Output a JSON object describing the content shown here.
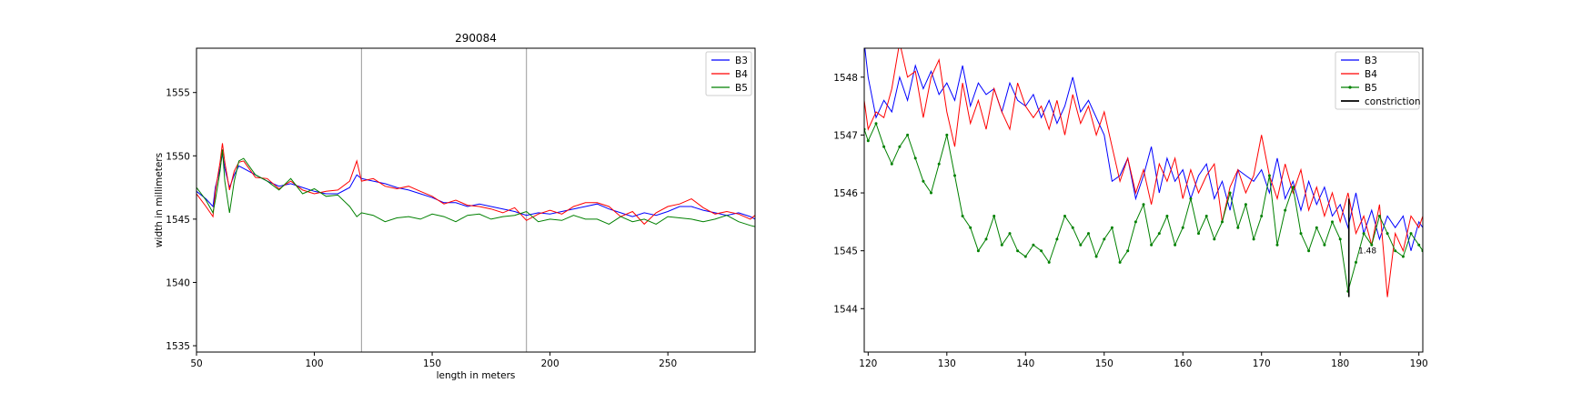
{
  "figure_title": "290084",
  "colors": {
    "B3": "#0000ff",
    "B4": "#ff0000",
    "B5": "#008000",
    "constriction": "#000000",
    "vline": "#999999"
  },
  "chart_data": [
    {
      "type": "line",
      "title": "290084",
      "xlabel": "length in meters",
      "ylabel": "width in millimeters",
      "xlim": [
        50,
        287
      ],
      "ylim": [
        1534.5,
        1558.5
      ],
      "xticks": [
        50,
        100,
        150,
        200,
        250
      ],
      "yticks": [
        1535,
        1540,
        1545,
        1550,
        1555
      ],
      "grid": false,
      "legend_position": "top-right",
      "vlines": [
        120,
        190
      ],
      "series": [
        {
          "name": "B3",
          "color": "#0000ff",
          "x": [
            50,
            54,
            57,
            58,
            60,
            61,
            62,
            64,
            66,
            68,
            70,
            75,
            80,
            85,
            90,
            95,
            100,
            105,
            110,
            115,
            118,
            120,
            125,
            130,
            135,
            140,
            145,
            150,
            155,
            160,
            165,
            170,
            175,
            180,
            185,
            190,
            195,
            200,
            205,
            210,
            215,
            220,
            225,
            230,
            235,
            240,
            245,
            250,
            255,
            260,
            265,
            270,
            275,
            280,
            285,
            287
          ],
          "y": [
            1547.2,
            1546.6,
            1546.0,
            1547.5,
            1549.0,
            1550.2,
            1549.0,
            1547.5,
            1548.5,
            1549.2,
            1549.0,
            1548.5,
            1548.0,
            1547.6,
            1547.8,
            1547.5,
            1547.2,
            1547.0,
            1547.0,
            1547.5,
            1548.5,
            1548.2,
            1548.0,
            1547.8,
            1547.5,
            1547.3,
            1547.0,
            1546.7,
            1546.3,
            1546.3,
            1546.0,
            1546.2,
            1546.0,
            1545.8,
            1545.6,
            1545.3,
            1545.5,
            1545.4,
            1545.6,
            1545.8,
            1546.0,
            1546.2,
            1545.8,
            1545.5,
            1545.2,
            1545.5,
            1545.3,
            1545.6,
            1546.0,
            1546.0,
            1545.7,
            1545.5,
            1545.3,
            1545.5,
            1545.2,
            1545.0
          ]
        },
        {
          "name": "B4",
          "color": "#ff0000",
          "x": [
            50,
            54,
            57,
            58,
            60,
            61,
            62,
            64,
            66,
            68,
            70,
            75,
            80,
            85,
            90,
            95,
            100,
            105,
            110,
            115,
            118,
            120,
            125,
            130,
            135,
            140,
            145,
            150,
            155,
            160,
            165,
            170,
            175,
            180,
            185,
            190,
            195,
            200,
            205,
            210,
            215,
            220,
            225,
            230,
            235,
            240,
            245,
            250,
            255,
            260,
            265,
            270,
            275,
            280,
            285,
            287
          ],
          "y": [
            1547.0,
            1546.0,
            1545.2,
            1547.2,
            1549.5,
            1551.0,
            1549.5,
            1547.3,
            1548.8,
            1549.5,
            1549.6,
            1548.3,
            1548.2,
            1547.4,
            1548.0,
            1547.3,
            1547.0,
            1547.2,
            1547.3,
            1548.0,
            1549.6,
            1548.0,
            1548.2,
            1547.6,
            1547.4,
            1547.6,
            1547.2,
            1546.8,
            1546.2,
            1546.5,
            1546.1,
            1546.0,
            1545.8,
            1545.5,
            1545.9,
            1544.9,
            1545.4,
            1545.7,
            1545.4,
            1546.0,
            1546.3,
            1546.3,
            1546.0,
            1545.2,
            1545.6,
            1544.6,
            1545.5,
            1546.0,
            1546.2,
            1546.6,
            1545.9,
            1545.4,
            1545.6,
            1545.4,
            1545.0,
            1545.3
          ]
        },
        {
          "name": "B5",
          "color": "#008000",
          "x": [
            50,
            54,
            57,
            58,
            60,
            61,
            62,
            64,
            66,
            68,
            70,
            75,
            80,
            85,
            90,
            95,
            100,
            105,
            110,
            115,
            118,
            120,
            125,
            130,
            135,
            140,
            145,
            150,
            155,
            160,
            165,
            170,
            175,
            180,
            185,
            190,
            195,
            200,
            205,
            210,
            215,
            220,
            225,
            230,
            235,
            240,
            245,
            250,
            255,
            260,
            265,
            270,
            275,
            280,
            285,
            287
          ],
          "y": [
            1547.5,
            1546.5,
            1545.5,
            1546.5,
            1548.8,
            1550.5,
            1548.0,
            1545.5,
            1548.0,
            1549.6,
            1549.8,
            1548.5,
            1548.0,
            1547.3,
            1548.2,
            1547.0,
            1547.4,
            1546.8,
            1546.9,
            1546.0,
            1545.2,
            1545.5,
            1545.3,
            1544.8,
            1545.1,
            1545.2,
            1545.0,
            1545.4,
            1545.2,
            1544.8,
            1545.3,
            1545.4,
            1545.0,
            1545.2,
            1545.3,
            1545.6,
            1544.8,
            1545.0,
            1544.9,
            1545.3,
            1545.0,
            1545.0,
            1544.6,
            1545.2,
            1544.8,
            1545.0,
            1544.6,
            1545.2,
            1545.1,
            1545.0,
            1544.8,
            1545.0,
            1545.3,
            1544.8,
            1544.5,
            1544.4
          ]
        }
      ]
    },
    {
      "type": "line",
      "title": "",
      "xlabel": "",
      "ylabel": "",
      "xlim": [
        119.5,
        190.5
      ],
      "ylim": [
        1543.25,
        1548.5
      ],
      "xticks": [
        120,
        130,
        140,
        150,
        160,
        170,
        180,
        190
      ],
      "yticks": [
        1544,
        1545,
        1546,
        1547,
        1548
      ],
      "grid": false,
      "legend_position": "top-right",
      "annotation": {
        "text": "1.48",
        "x": 182.3,
        "y": 1545.0
      },
      "constriction": {
        "x": [
          181.1,
          181.1
        ],
        "y": [
          1545.9,
          1544.2
        ]
      },
      "series": [
        {
          "name": "B3",
          "color": "#0000ff",
          "marker": "none",
          "x": [
            119.5,
            120,
            121,
            122,
            123,
            124,
            125,
            126,
            127,
            128,
            129,
            130,
            131,
            132,
            133,
            134,
            135,
            136,
            137,
            138,
            139,
            140,
            141,
            142,
            143,
            144,
            145,
            146,
            147,
            148,
            149,
            150,
            151,
            152,
            153,
            154,
            155,
            156,
            157,
            158,
            159,
            160,
            161,
            162,
            163,
            164,
            165,
            166,
            167,
            168,
            169,
            170,
            171,
            172,
            173,
            174,
            175,
            176,
            177,
            178,
            179,
            180,
            181,
            182,
            183,
            184,
            185,
            186,
            187,
            188,
            189,
            190,
            190.5
          ],
          "y": [
            1548.6,
            1548.0,
            1547.3,
            1547.6,
            1547.4,
            1548.0,
            1547.6,
            1548.2,
            1547.8,
            1548.1,
            1547.7,
            1547.9,
            1547.6,
            1548.2,
            1547.5,
            1547.9,
            1547.7,
            1547.8,
            1547.4,
            1547.9,
            1547.6,
            1547.5,
            1547.7,
            1547.3,
            1547.6,
            1547.2,
            1547.5,
            1548.0,
            1547.4,
            1547.6,
            1547.3,
            1547.0,
            1546.2,
            1546.3,
            1546.6,
            1545.9,
            1546.3,
            1546.8,
            1546.0,
            1546.6,
            1546.2,
            1546.4,
            1545.9,
            1546.3,
            1546.5,
            1545.9,
            1546.2,
            1545.7,
            1546.4,
            1546.3,
            1546.2,
            1546.4,
            1546.0,
            1546.6,
            1545.9,
            1546.2,
            1545.7,
            1546.2,
            1545.8,
            1546.1,
            1545.6,
            1545.8,
            1545.4,
            1546.0,
            1545.3,
            1545.7,
            1545.2,
            1545.6,
            1545.4,
            1545.6,
            1545.0,
            1545.5,
            1545.4
          ]
        },
        {
          "name": "B4",
          "color": "#ff0000",
          "marker": "none",
          "x": [
            119.5,
            120,
            121,
            122,
            123,
            124,
            125,
            126,
            127,
            128,
            129,
            130,
            131,
            132,
            133,
            134,
            135,
            136,
            137,
            138,
            139,
            140,
            141,
            142,
            143,
            144,
            145,
            146,
            147,
            148,
            149,
            150,
            151,
            152,
            153,
            154,
            155,
            156,
            157,
            158,
            159,
            160,
            161,
            162,
            163,
            164,
            165,
            166,
            167,
            168,
            169,
            170,
            171,
            172,
            173,
            174,
            175,
            176,
            177,
            178,
            179,
            180,
            181,
            182,
            183,
            184,
            185,
            186,
            187,
            188,
            189,
            190,
            190.5
          ],
          "y": [
            1547.6,
            1547.1,
            1547.4,
            1547.3,
            1547.8,
            1548.6,
            1548.0,
            1548.1,
            1547.3,
            1548.0,
            1548.3,
            1547.4,
            1546.8,
            1547.9,
            1547.2,
            1547.6,
            1547.1,
            1547.8,
            1547.4,
            1547.1,
            1547.9,
            1547.5,
            1547.3,
            1547.5,
            1547.1,
            1547.6,
            1547.0,
            1547.7,
            1547.2,
            1547.5,
            1547.0,
            1547.4,
            1546.8,
            1546.2,
            1546.6,
            1546.0,
            1546.4,
            1545.8,
            1546.5,
            1546.2,
            1546.6,
            1545.9,
            1546.4,
            1546.0,
            1546.3,
            1546.5,
            1545.5,
            1546.1,
            1546.4,
            1546.0,
            1546.3,
            1547.0,
            1546.3,
            1545.9,
            1546.5,
            1546.0,
            1546.4,
            1545.7,
            1546.1,
            1545.6,
            1546.0,
            1545.5,
            1546.0,
            1545.3,
            1545.6,
            1545.1,
            1545.8,
            1544.2,
            1545.3,
            1545.0,
            1545.6,
            1545.4,
            1545.6
          ]
        },
        {
          "name": "B5",
          "color": "#008000",
          "marker": "dot",
          "x": [
            119.5,
            120,
            121,
            122,
            123,
            124,
            125,
            126,
            127,
            128,
            129,
            130,
            131,
            132,
            133,
            134,
            135,
            136,
            137,
            138,
            139,
            140,
            141,
            142,
            143,
            144,
            145,
            146,
            147,
            148,
            149,
            150,
            151,
            152,
            153,
            154,
            155,
            156,
            157,
            158,
            159,
            160,
            161,
            162,
            163,
            164,
            165,
            166,
            167,
            168,
            169,
            170,
            171,
            172,
            173,
            174,
            175,
            176,
            177,
            178,
            179,
            180,
            181,
            182,
            183,
            184,
            185,
            186,
            187,
            188,
            189,
            190,
            190.5
          ],
          "y": [
            1547.1,
            1546.9,
            1547.2,
            1546.8,
            1546.5,
            1546.8,
            1547.0,
            1546.6,
            1546.2,
            1546.0,
            1546.5,
            1547.0,
            1546.3,
            1545.6,
            1545.4,
            1545.0,
            1545.2,
            1545.6,
            1545.1,
            1545.3,
            1545.0,
            1544.9,
            1545.1,
            1545.0,
            1544.8,
            1545.2,
            1545.6,
            1545.4,
            1545.1,
            1545.3,
            1544.9,
            1545.2,
            1545.4,
            1544.8,
            1545.0,
            1545.5,
            1545.8,
            1545.1,
            1545.3,
            1545.6,
            1545.1,
            1545.4,
            1545.9,
            1545.3,
            1545.6,
            1545.2,
            1545.5,
            1546.0,
            1545.4,
            1545.8,
            1545.2,
            1545.6,
            1546.3,
            1545.1,
            1545.7,
            1546.1,
            1545.3,
            1545.0,
            1545.4,
            1545.1,
            1545.5,
            1545.2,
            1544.3,
            1544.8,
            1545.3,
            1545.1,
            1545.6,
            1545.3,
            1545.0,
            1544.9,
            1545.3,
            1545.1,
            1545.0
          ]
        }
      ],
      "legend_entries": [
        "B3",
        "B4",
        "B5",
        "constriction"
      ]
    }
  ]
}
